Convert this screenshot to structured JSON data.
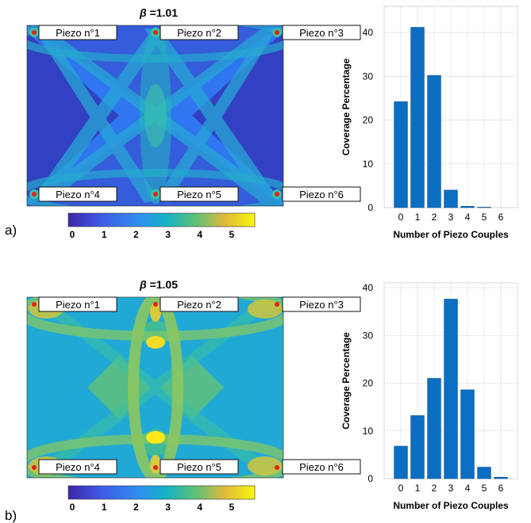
{
  "panels": [
    {
      "panel_label": "a)",
      "map_title_symbol": "β",
      "map_title_value": " =1.01",
      "piezo_labels": [
        "Piezo n°1",
        "Piezo n°2",
        "Piezo n°3",
        "Piezo n°4",
        "Piezo n°5",
        "Piezo n°6"
      ],
      "colorbar_ticks": [
        "0",
        "1",
        "2",
        "3",
        "4",
        "5"
      ]
    },
    {
      "panel_label": "b)",
      "map_title_symbol": "β",
      "map_title_value": " =1.05",
      "piezo_labels": [
        "Piezo n°1",
        "Piezo n°2",
        "Piezo n°3",
        "Piezo n°4",
        "Piezo n°5",
        "Piezo n°6"
      ],
      "colorbar_ticks": [
        "0",
        "1",
        "2",
        "3",
        "4",
        "5"
      ]
    }
  ],
  "colors": {
    "bar": "#0a6fc2",
    "bar_edge": "#0d4f8e",
    "piezo_dot": "#e0221b",
    "map_low": "#3640c6",
    "map_base": "#2f76f0",
    "map_mid": "#22b8bf",
    "map_high": "#e2d535",
    "map_max": "#ffe917"
  },
  "chart_data": [
    {
      "type": "bar",
      "categories": [
        "0",
        "1",
        "2",
        "3",
        "4",
        "5",
        "6"
      ],
      "values": [
        24.2,
        41.2,
        30.2,
        4.0,
        0.3,
        0.1,
        0.0
      ],
      "ylabel": "Coverage Percentage",
      "xlabel": "Number of Piezo Couples",
      "yticks": [
        0,
        10,
        20,
        30,
        40
      ],
      "ylim": [
        0,
        46
      ],
      "grid": true
    },
    {
      "type": "bar",
      "categories": [
        "0",
        "1",
        "2",
        "3",
        "4",
        "5",
        "6"
      ],
      "values": [
        6.8,
        13.2,
        21.0,
        37.6,
        18.6,
        2.4,
        0.3
      ],
      "ylabel": "Coverage Percentage",
      "xlabel": "Number of Piezo Couples",
      "yticks": [
        0,
        10,
        20,
        30,
        40
      ],
      "ylim": [
        0,
        41
      ],
      "grid": true
    }
  ]
}
